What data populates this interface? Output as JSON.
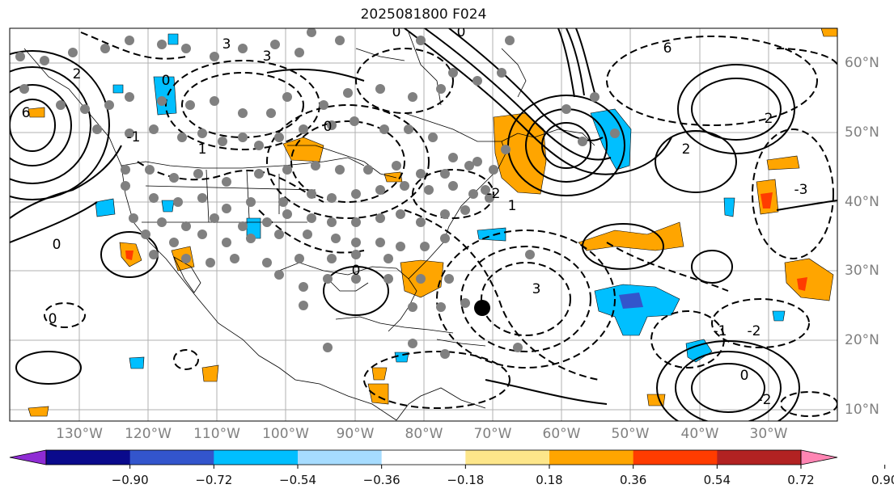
{
  "title": "2025081800 F024",
  "longitude_labels": [
    "130°W",
    "120°W",
    "110°W",
    "100°W",
    "90°W",
    "80°W",
    "70°W",
    "60°W",
    "50°W",
    "40°W",
    "30°W"
  ],
  "latitude_labels": [
    "60°N",
    "50°N",
    "40°N",
    "30°N",
    "20°N",
    "10°N"
  ],
  "colorbar": {
    "colors": [
      "#8f2cd4",
      "#0a0a8c",
      "#3355cc",
      "#00bfff",
      "#a6dcff",
      "#ffffff",
      "#fde68a",
      "#ffa500",
      "#ff3c00",
      "#b22222",
      "#ff85b3"
    ],
    "tick_labels": [
      "−0.90",
      "−0.72",
      "−0.54",
      "−0.36",
      "−0.18",
      "0.18",
      "0.36",
      "0.54",
      "0.72",
      "0.90"
    ]
  },
  "contour_labels": [
    "3",
    "2",
    "1",
    "0",
    "-2",
    "-1",
    "6",
    "-3"
  ],
  "station_dot_color": "#808080",
  "storm_marker_color": "#000000"
}
